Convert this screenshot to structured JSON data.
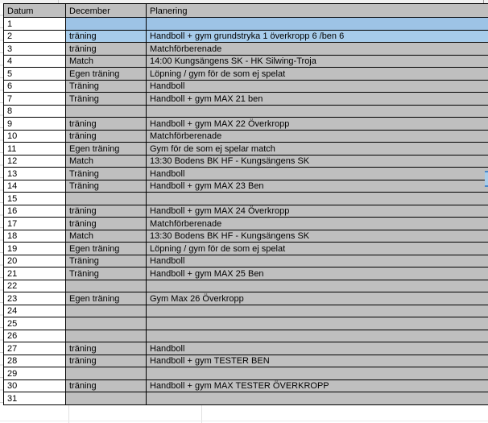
{
  "table": {
    "headers": {
      "datum": "Datum",
      "december": "December",
      "planering": "Planering"
    },
    "rows": [
      {
        "datum": "1",
        "december": "",
        "planering": "",
        "highlight": true
      },
      {
        "datum": "2",
        "december": "träning",
        "planering": "Handboll + gym grundstryka 1 överkropp 6 /ben 6",
        "highlight": true
      },
      {
        "datum": "3",
        "december": "träning",
        "planering": "Matchförberenade",
        "highlight": false
      },
      {
        "datum": "4",
        "december": "Match",
        "planering": "14:00 Kungsängens SK - HK Silwing-Troja",
        "highlight": false
      },
      {
        "datum": "5",
        "december": "Egen träning",
        "planering": "Löpning / gym för de som ej spelat",
        "highlight": false
      },
      {
        "datum": "6",
        "december": "Träning",
        "planering": "Handboll",
        "highlight": false
      },
      {
        "datum": "7",
        "december": "Träning",
        "planering": "Handboll + gym MAX 21 ben",
        "highlight": false
      },
      {
        "datum": "8",
        "december": "",
        "planering": "",
        "highlight": false
      },
      {
        "datum": "9",
        "december": "träning",
        "planering": "Handboll + gym MAX 22 Överkropp",
        "highlight": false
      },
      {
        "datum": "10",
        "december": "träning",
        "planering": "Matchförberenade",
        "highlight": false
      },
      {
        "datum": "11",
        "december": "Egen träning",
        "planering": "Gym för de som ej spelar match",
        "highlight": false
      },
      {
        "datum": "12",
        "december": "Match",
        "planering": "13:30 Bodens BK HF - Kungsängens SK",
        "highlight": false
      },
      {
        "datum": "13",
        "december": "Träning",
        "planering": "Handboll",
        "highlight": false
      },
      {
        "datum": "14",
        "december": "Träning",
        "planering": "Handboll + gym MAX 23 Ben",
        "highlight": false
      },
      {
        "datum": "15",
        "december": "",
        "planering": "",
        "highlight": false
      },
      {
        "datum": "16",
        "december": "träning",
        "planering": "Handboll + gym MAX 24 Överkropp",
        "highlight": false
      },
      {
        "datum": "17",
        "december": "träning",
        "planering": "Matchförberenade",
        "highlight": false
      },
      {
        "datum": "18",
        "december": "Match",
        "planering": "13:30 Bodens BK HF - Kungsängens SK",
        "highlight": false
      },
      {
        "datum": "19",
        "december": "Egen träning",
        "planering": "Löpning / gym för de som ej spelat",
        "highlight": false
      },
      {
        "datum": "20",
        "december": "Träning",
        "planering": "Handboll",
        "highlight": false
      },
      {
        "datum": "21",
        "december": "Träning",
        "planering": "Handboll + gym MAX 25 Ben",
        "highlight": false
      },
      {
        "datum": "22",
        "december": "",
        "planering": "",
        "highlight": false
      },
      {
        "datum": "23",
        "december": "Egen träning",
        "planering": "Gym Max 26 Överkropp",
        "highlight": false
      },
      {
        "datum": "24",
        "december": "",
        "planering": "",
        "highlight": false
      },
      {
        "datum": "25",
        "december": "",
        "planering": "",
        "highlight": false
      },
      {
        "datum": "26",
        "december": "",
        "planering": "",
        "highlight": false
      },
      {
        "datum": "27",
        "december": "träning",
        "planering": "Handboll",
        "highlight": false
      },
      {
        "datum": "28",
        "december": "träning",
        "planering": "Handboll + gym TESTER BEN",
        "highlight": false
      },
      {
        "datum": "29",
        "december": "",
        "planering": "",
        "highlight": false
      },
      {
        "datum": "30",
        "december": "träning",
        "planering": "Handboll + gym MAX TESTER ÖVERKROPP",
        "highlight": false
      },
      {
        "datum": "31",
        "december": "",
        "planering": "",
        "highlight": false
      }
    ]
  },
  "colors": {
    "cell_gray": "#bfbfbf",
    "header_gray": "#bfbfbf",
    "highlight_blue_row1": "#9dc3e6",
    "highlight_blue_row2": "#a7cceb",
    "grid_line": "#000000",
    "datum_cell_white": "#ffffff",
    "selection_fragment_blue": "#a8ccea"
  }
}
